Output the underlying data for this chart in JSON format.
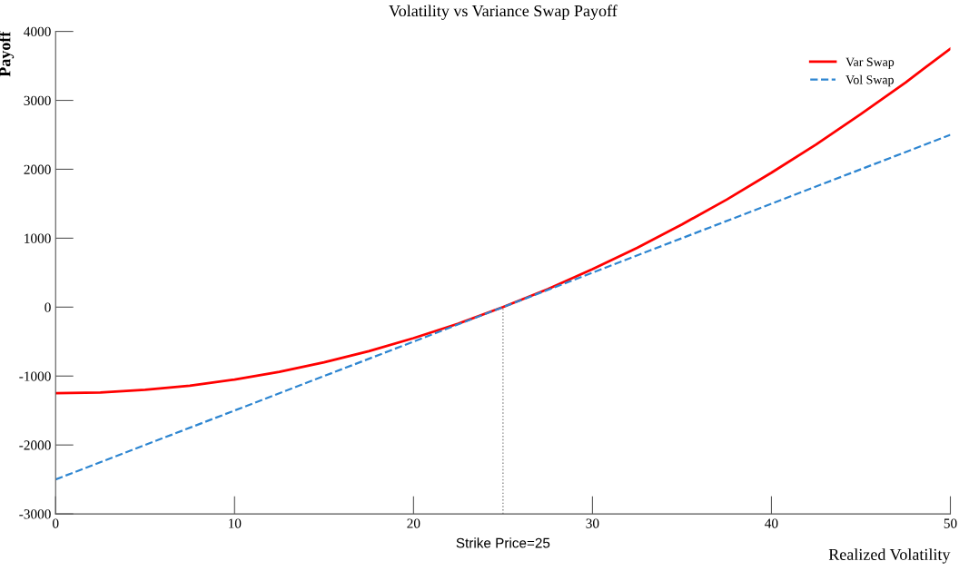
{
  "chart_data": {
    "type": "line",
    "title": "Volatility vs Variance Swap Payoff",
    "xlabel": "Realized Volatility",
    "ylabel": "Payoff",
    "series": [
      {
        "name": "Var Swap",
        "color": "#ff0000",
        "line_style": "solid",
        "x": [
          0,
          2.5,
          5,
          7.5,
          10,
          12.5,
          15,
          17.5,
          20,
          22.5,
          25,
          27.5,
          30,
          32.5,
          35,
          37.5,
          40,
          42.5,
          45,
          47.5,
          50
        ],
        "values": [
          -1250,
          -1240,
          -1200,
          -1140,
          -1050,
          -940,
          -800,
          -640,
          -450,
          -240,
          0,
          260,
          550,
          860,
          1200,
          1560,
          1950,
          2360,
          2800,
          3260,
          3750
        ]
      },
      {
        "name": "Vol Swap",
        "color": "#2e86d1",
        "line_style": "dashed",
        "x": [
          0,
          50
        ],
        "values": [
          -2500,
          2500
        ]
      }
    ],
    "xlim": [
      0,
      50
    ],
    "xticks": [
      0,
      10,
      20,
      30,
      40,
      50
    ],
    "ylim": [
      -3000,
      4000
    ],
    "yticks": [
      -3000,
      -2000,
      -1000,
      0,
      1000,
      2000,
      3000,
      4000
    ],
    "ref_lines": [
      {
        "axis": "x",
        "value": 25,
        "label": "Strike Price=25",
        "color": "#888888",
        "line_style": "dotted"
      }
    ],
    "grid": false,
    "legend": "top right",
    "marker": "none"
  }
}
